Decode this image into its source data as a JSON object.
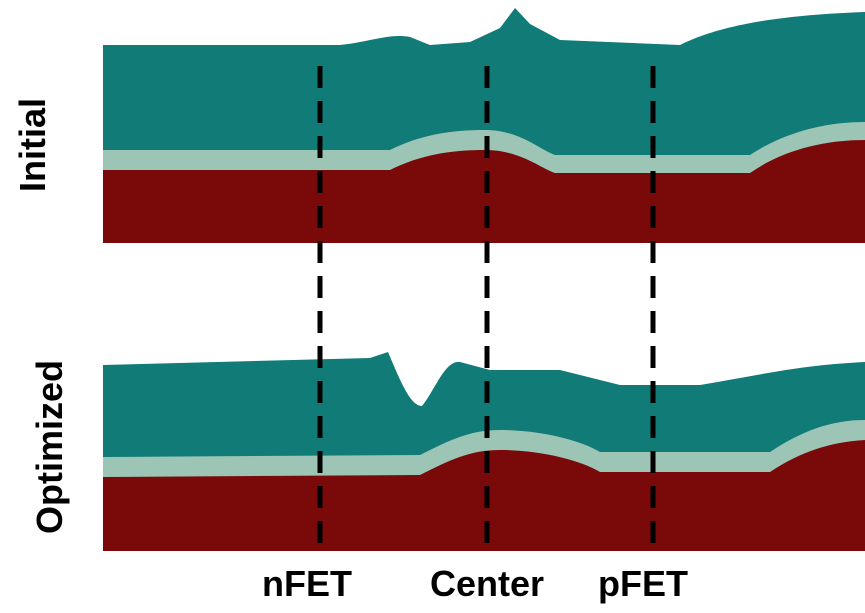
{
  "rows": [
    "Initial",
    "Optimized"
  ],
  "markers": [
    "nFET",
    "Center",
    "pFET"
  ]
}
